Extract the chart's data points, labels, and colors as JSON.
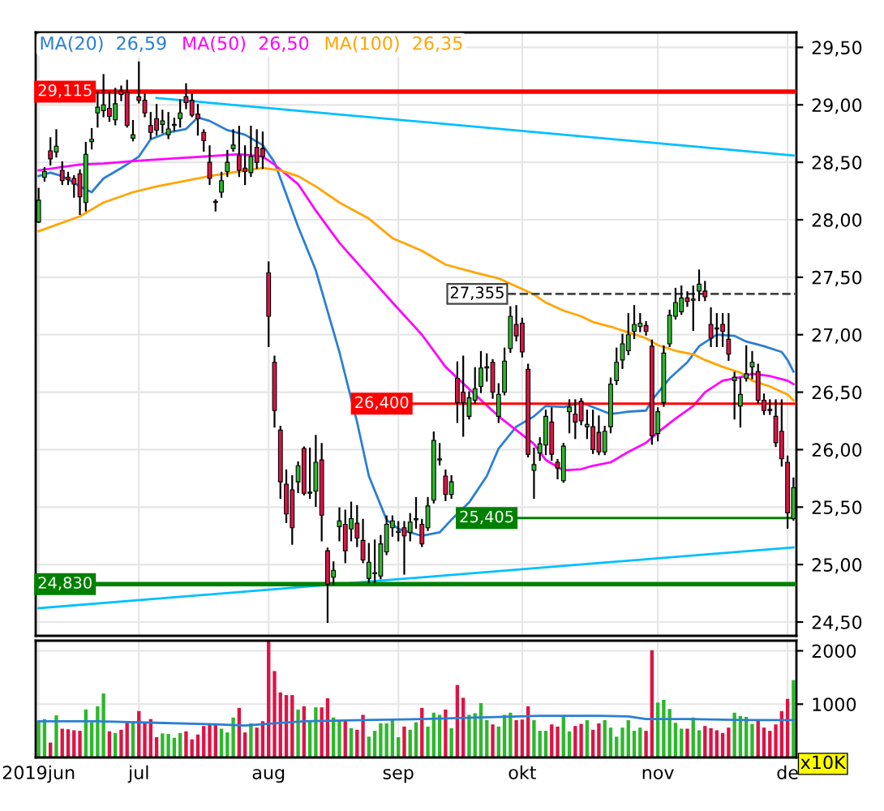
{
  "chart_data": [
    {
      "type": "candlestick",
      "legend": "top left",
      "grid": true,
      "tick_labels": "y",
      "categories": [
        null,
        null,
        null,
        null,
        null,
        null,
        null,
        null,
        null,
        null,
        null,
        null,
        null,
        null,
        null,
        null,
        null,
        null,
        null,
        null,
        null,
        null,
        null,
        null,
        null,
        null,
        null,
        null,
        null,
        null,
        null,
        null,
        null,
        null,
        null,
        null,
        null,
        null,
        null,
        null,
        null,
        null,
        null,
        null,
        null,
        null,
        null,
        null,
        null,
        null,
        null,
        null,
        null,
        null,
        null,
        null,
        null,
        null,
        null,
        null,
        null,
        null,
        null,
        null,
        null,
        null,
        null,
        null,
        null,
        null,
        null,
        null,
        null,
        null,
        null,
        null,
        null,
        null,
        null,
        null,
        null,
        null,
        null,
        null,
        null,
        null,
        null,
        null,
        null,
        null,
        null,
        null,
        null,
        null,
        null,
        null,
        null,
        null,
        null,
        null,
        null,
        null,
        null,
        null,
        null,
        null,
        null,
        null,
        null,
        null,
        null,
        null,
        null,
        null,
        null,
        null,
        null,
        null,
        null,
        null,
        null,
        null,
        null,
        null,
        null,
        null,
        null,
        null,
        null
      ],
      "ohlc": [
        [
          27.98,
          28.27,
          27.98,
          28.17
        ],
        [
          28.37,
          28.45,
          28.34,
          28.42
        ],
        [
          28.6,
          28.71,
          28.48,
          28.53
        ],
        [
          28.59,
          28.78,
          28.55,
          28.64
        ],
        [
          28.43,
          28.5,
          28.31,
          28.34
        ],
        [
          28.37,
          28.41,
          28.31,
          28.35
        ],
        [
          28.36,
          28.38,
          28.2,
          28.31
        ],
        [
          28.4,
          28.43,
          28.05,
          28.2
        ],
        [
          28.15,
          28.67,
          28.08,
          28.57
        ],
        [
          28.68,
          28.79,
          28.62,
          28.7
        ],
        [
          28.93,
          29.11,
          28.81,
          28.98
        ],
        [
          28.95,
          29.26,
          28.9,
          29.0
        ],
        [
          28.97,
          29.11,
          28.86,
          28.9
        ],
        [
          28.87,
          29.14,
          28.83,
          29.01
        ],
        [
          29.12,
          29.16,
          29.04,
          29.09
        ],
        [
          29.11,
          29.21,
          28.81,
          28.82
        ],
        [
          28.71,
          28.86,
          28.69,
          28.74
        ],
        [
          29.07,
          29.37,
          29.02,
          29.04
        ],
        [
          29.04,
          29.09,
          28.9,
          28.93
        ],
        [
          28.82,
          28.93,
          28.71,
          28.76
        ],
        [
          28.88,
          29.0,
          28.74,
          28.78
        ],
        [
          28.83,
          28.95,
          28.76,
          28.86
        ],
        [
          28.74,
          28.93,
          28.71,
          28.79
        ],
        [
          28.82,
          28.88,
          28.78,
          28.83
        ],
        [
          28.88,
          29.04,
          28.81,
          28.93
        ],
        [
          29.07,
          29.18,
          28.97,
          29.02
        ],
        [
          29.04,
          29.09,
          28.9,
          28.91
        ],
        [
          28.92,
          29.0,
          28.74,
          28.88
        ],
        [
          28.76,
          28.78,
          28.6,
          28.69
        ],
        [
          28.5,
          28.64,
          28.31,
          28.36
        ],
        [
          28.16,
          28.17,
          28.08,
          28.15
        ],
        [
          28.24,
          28.41,
          28.2,
          28.34
        ],
        [
          28.42,
          28.6,
          28.38,
          28.5
        ],
        [
          28.62,
          28.78,
          28.6,
          28.65
        ],
        [
          28.56,
          28.81,
          28.38,
          28.43
        ],
        [
          28.45,
          28.64,
          28.31,
          28.42
        ],
        [
          28.41,
          28.81,
          28.38,
          28.55
        ],
        [
          28.63,
          28.78,
          28.45,
          28.5
        ],
        [
          28.62,
          28.76,
          28.45,
          28.55
        ],
        [
          27.54,
          27.63,
          26.9,
          27.16
        ],
        [
          26.76,
          26.81,
          26.2,
          26.34
        ],
        [
          26.17,
          26.2,
          25.58,
          25.72
        ],
        [
          25.7,
          25.82,
          25.37,
          25.44
        ],
        [
          25.65,
          25.77,
          25.18,
          25.32
        ],
        [
          25.72,
          25.89,
          25.63,
          25.86
        ],
        [
          26.01,
          26.02,
          25.61,
          25.62
        ],
        [
          25.62,
          26.01,
          25.58,
          25.63
        ],
        [
          25.64,
          26.12,
          25.51,
          25.89
        ],
        [
          25.91,
          26.05,
          25.21,
          25.43
        ],
        [
          25.12,
          25.14,
          24.5,
          24.83
        ],
        [
          24.89,
          25.02,
          24.83,
          24.95
        ],
        [
          25.33,
          25.49,
          25.21,
          25.38
        ],
        [
          25.35,
          25.47,
          25.02,
          25.12
        ],
        [
          25.31,
          25.54,
          25.21,
          25.4
        ],
        [
          25.36,
          25.51,
          25.16,
          25.23
        ],
        [
          25.21,
          25.39,
          25.02,
          25.04
        ],
        [
          24.88,
          25.18,
          24.85,
          25.02
        ],
        [
          24.92,
          25.21,
          24.85,
          24.93
        ],
        [
          24.9,
          25.25,
          24.88,
          25.18
        ],
        [
          25.11,
          25.42,
          25.09,
          25.35
        ],
        [
          25.32,
          25.42,
          25.25,
          25.38
        ],
        [
          25.28,
          25.37,
          25.21,
          25.29
        ],
        [
          25.32,
          25.37,
          24.92,
          25.25
        ],
        [
          25.28,
          25.44,
          25.21,
          25.37
        ],
        [
          25.39,
          25.58,
          25.32,
          25.4
        ],
        [
          25.35,
          25.39,
          25.16,
          25.18
        ],
        [
          25.32,
          25.58,
          25.3,
          25.51
        ],
        [
          25.56,
          26.15,
          25.54,
          26.08
        ],
        [
          25.91,
          26.05,
          25.87,
          25.92
        ],
        [
          25.77,
          25.82,
          25.56,
          25.61
        ],
        [
          25.61,
          25.77,
          25.58,
          25.72
        ],
        [
          26.62,
          26.76,
          26.24,
          26.41
        ],
        [
          26.5,
          26.81,
          26.12,
          26.41
        ],
        [
          26.29,
          26.5,
          26.27,
          26.45
        ],
        [
          26.43,
          26.71,
          26.41,
          26.53
        ],
        [
          26.55,
          26.85,
          26.5,
          26.71
        ],
        [
          26.71,
          26.83,
          26.6,
          26.72
        ],
        [
          26.76,
          26.78,
          26.45,
          26.5
        ],
        [
          26.29,
          26.57,
          26.24,
          26.48
        ],
        [
          26.5,
          26.88,
          26.48,
          26.77
        ],
        [
          26.88,
          27.24,
          26.85,
          27.16
        ],
        [
          27.09,
          27.25,
          26.95,
          26.99
        ],
        [
          27.1,
          27.14,
          26.81,
          26.85
        ],
        [
          26.7,
          26.74,
          25.94,
          25.96
        ],
        [
          25.82,
          26.01,
          25.58,
          25.87
        ],
        [
          25.97,
          26.1,
          25.91,
          26.05
        ],
        [
          26.04,
          26.34,
          25.96,
          26.29
        ],
        [
          26.24,
          26.36,
          25.91,
          25.96
        ],
        [
          25.89,
          25.91,
          25.75,
          25.84
        ],
        [
          25.73,
          26.05,
          25.72,
          26.03
        ],
        [
          26.33,
          26.43,
          26.15,
          26.37
        ],
        [
          26.31,
          26.43,
          26.1,
          26.24
        ],
        [
          26.42,
          26.44,
          26.22,
          26.25
        ],
        [
          26.2,
          26.34,
          26.1,
          26.22
        ],
        [
          26.2,
          26.34,
          25.97,
          26.0
        ],
        [
          26.15,
          26.29,
          25.96,
          25.98
        ],
        [
          25.98,
          26.2,
          25.96,
          26.16
        ],
        [
          26.2,
          26.62,
          26.15,
          26.57
        ],
        [
          26.6,
          26.88,
          26.57,
          26.76
        ],
        [
          26.78,
          27.0,
          26.71,
          26.92
        ],
        [
          26.86,
          27.18,
          26.83,
          27.0
        ],
        [
          27.03,
          27.25,
          26.97,
          27.09
        ],
        [
          27.07,
          27.18,
          27.03,
          27.1
        ],
        [
          27.08,
          27.11,
          27.0,
          27.03
        ],
        [
          26.9,
          26.95,
          26.05,
          26.12
        ],
        [
          26.14,
          26.36,
          26.08,
          26.33
        ],
        [
          26.41,
          26.9,
          26.38,
          26.84
        ],
        [
          26.92,
          27.21,
          26.9,
          27.17
        ],
        [
          27.16,
          27.4,
          27.14,
          27.28
        ],
        [
          27.2,
          27.42,
          27.18,
          27.32
        ],
        [
          27.32,
          27.37,
          27.25,
          27.29
        ],
        [
          27.3,
          27.42,
          27.04,
          27.31
        ],
        [
          27.38,
          27.56,
          27.3,
          27.44
        ],
        [
          27.38,
          27.46,
          27.3,
          27.33
        ],
        [
          27.09,
          27.23,
          26.9,
          26.97
        ],
        [
          27.06,
          27.18,
          26.9,
          27.05
        ],
        [
          27.09,
          27.18,
          26.9,
          27.03
        ],
        [
          26.96,
          27.18,
          26.78,
          26.83
        ],
        [
          26.6,
          26.67,
          26.27,
          26.63
        ],
        [
          26.38,
          26.62,
          26.2,
          26.48
        ],
        [
          26.62,
          26.9,
          26.6,
          26.66
        ],
        [
          26.72,
          26.85,
          26.62,
          26.76
        ],
        [
          26.68,
          26.74,
          26.41,
          26.43
        ],
        [
          26.43,
          26.48,
          26.31,
          26.34
        ],
        [
          26.35,
          26.43,
          26.31,
          26.34
        ],
        [
          26.29,
          26.43,
          26.03,
          26.06
        ],
        [
          26.16,
          26.43,
          25.86,
          25.92
        ],
        [
          25.89,
          25.94,
          25.32,
          25.45
        ],
        [
          25.4,
          25.75,
          25.39,
          25.67
        ]
      ],
      "colors": [
        "#2db82d",
        "#2db82d",
        "#dc1446",
        "#2db82d",
        "#dc1446",
        "#dc1446",
        "#dc1446",
        "#dc1446",
        "#2db82d",
        "#2db82d",
        "#2db82d",
        "#2db82d",
        "#dc1446",
        "#2db82d",
        "#dc1446",
        "#dc1446",
        "#2db82d",
        "#dc1446",
        "#dc1446",
        "#dc1446",
        "#dc1446",
        "#2db82d",
        "#2db82d",
        "#2db82d",
        "#2db82d",
        "#dc1446",
        "#dc1446",
        "#dc1446",
        "#dc1446",
        "#dc1446",
        "#dc1446",
        "#2db82d",
        "#2db82d",
        "#2db82d",
        "#dc1446",
        "#dc1446",
        "#2db82d",
        "#dc1446",
        "#dc1446",
        "#dc1446",
        "#dc1446",
        "#dc1446",
        "#dc1446",
        "#dc1446",
        "#2db82d",
        "#dc1446",
        "#2db82d",
        "#2db82d",
        "#dc1446",
        "#dc1446",
        "#2db82d",
        "#2db82d",
        "#dc1446",
        "#2db82d",
        "#dc1446",
        "#dc1446",
        "#2db82d",
        "#2db82d",
        "#2db82d",
        "#2db82d",
        "#2db82d",
        "#2db82d",
        "#dc1446",
        "#2db82d",
        "#2db82d",
        "#dc1446",
        "#2db82d",
        "#2db82d",
        "#2db82d",
        "#dc1446",
        "#2db82d",
        "#dc1446",
        "#dc1446",
        "#2db82d",
        "#2db82d",
        "#2db82d",
        "#2db82d",
        "#dc1446",
        "#2db82d",
        "#2db82d",
        "#2db82d",
        "#dc1446",
        "#dc1446",
        "#dc1446",
        "#2db82d",
        "#2db82d",
        "#2db82d",
        "#dc1446",
        "#dc1446",
        "#2db82d",
        "#2db82d",
        "#dc1446",
        "#dc1446",
        "#2db82d",
        "#dc1446",
        "#dc1446",
        "#2db82d",
        "#2db82d",
        "#2db82d",
        "#2db82d",
        "#2db82d",
        "#2db82d",
        "#2db82d",
        "#dc1446",
        "#dc1446",
        "#2db82d",
        "#2db82d",
        "#2db82d",
        "#2db82d",
        "#2db82d",
        "#dc1446",
        "#2db82d",
        "#2db82d",
        "#dc1446",
        "#dc1446",
        "#dc1446",
        "#dc1446",
        "#dc1446",
        "#2db82d",
        "#2db82d",
        "#2db82d",
        "#2db82d",
        "#dc1446",
        "#dc1446",
        "#dc1446",
        "#dc1446",
        "#dc1446",
        "#dc1446",
        "#2db82d"
      ],
      "series": [
        {
          "name": "MA(20)  26,59",
          "type": "line",
          "color": "#2a7fd4",
          "values": [
            28.38,
            null,
            28.41,
            null,
            28.38,
            null,
            null,
            28.29,
            null,
            28.24,
            null,
            28.36,
            null,
            null,
            28.45,
            null,
            null,
            28.55,
            null,
            28.7,
            null,
            null,
            28.76,
            null,
            null,
            28.79,
            null,
            28.89,
            null,
            28.86,
            null,
            null,
            28.78,
            null,
            null,
            28.74,
            null,
            null,
            28.65,
            null,
            28.5,
            null,
            28.22,
            null,
            27.94,
            null,
            null,
            27.56,
            null,
            null,
            null,
            26.85,
            null,
            null,
            26.24,
            null,
            25.77,
            null,
            null,
            25.39,
            null,
            25.31,
            null,
            null,
            null,
            25.25,
            null,
            null,
            25.28,
            null,
            25.39,
            null,
            null,
            25.54,
            null,
            null,
            25.77,
            null,
            26.01,
            null,
            null,
            26.2,
            null,
            null,
            26.29,
            null,
            26.38,
            null,
            null,
            26.37,
            null,
            null,
            26.41,
            null,
            26.37,
            null,
            null,
            26.31,
            null,
            null,
            26.33,
            null,
            null,
            26.34,
            26.43,
            null,
            null,
            26.62,
            null,
            null,
            26.76,
            null,
            26.9,
            null,
            null,
            27.0,
            null,
            null,
            26.99,
            null,
            26.94,
            null,
            null,
            26.9,
            null,
            null,
            26.85,
            26.78,
            26.68
          ]
        },
        {
          "name": "MA(50)  26,50",
          "type": "line",
          "color": "#ff00ff",
          "values": [
            28.43,
            null,
            null,
            null,
            null,
            null,
            null,
            28.48,
            null,
            null,
            null,
            28.49,
            null,
            null,
            null,
            null,
            28.51,
            null,
            null,
            null,
            null,
            null,
            null,
            null,
            null,
            28.54,
            null,
            null,
            null,
            null,
            null,
            null,
            null,
            null,
            28.57,
            null,
            null,
            null,
            28.55,
            null,
            28.48,
            null,
            null,
            null,
            28.31,
            null,
            null,
            28.08,
            null,
            null,
            null,
            27.8,
            null,
            null,
            null,
            null,
            27.51,
            null,
            null,
            null,
            27.28,
            null,
            null,
            null,
            null,
            27.0,
            null,
            null,
            null,
            26.72,
            null,
            null,
            null,
            null,
            26.48,
            null,
            null,
            null,
            26.29,
            null,
            null,
            null,
            null,
            null,
            26.05,
            null,
            25.91,
            null,
            null,
            25.82,
            null,
            null,
            25.83,
            null,
            25.86,
            null,
            null,
            25.89,
            null,
            null,
            25.98,
            null,
            null,
            26.06,
            null,
            26.15,
            null,
            null,
            26.27,
            null,
            null,
            26.38,
            null,
            26.5,
            null,
            null,
            26.6,
            null,
            null,
            26.63,
            null,
            26.66,
            null,
            null,
            26.64,
            null,
            null,
            26.6,
            26.57
          ]
        },
        {
          "name": "MA(100)  26,35",
          "type": "line",
          "color": "#ffa500",
          "values": [
            27.9,
            null,
            null,
            null,
            null,
            null,
            null,
            28.03,
            null,
            null,
            null,
            28.15,
            null,
            null,
            null,
            null,
            28.24,
            null,
            null,
            null,
            28.29,
            null,
            null,
            null,
            null,
            28.34,
            null,
            null,
            null,
            28.38,
            null,
            null,
            null,
            null,
            28.42,
            null,
            null,
            null,
            28.45,
            null,
            null,
            28.43,
            null,
            null,
            28.38,
            null,
            null,
            28.29,
            null,
            null,
            null,
            28.15,
            null,
            null,
            null,
            null,
            28.01,
            null,
            null,
            null,
            27.84,
            null,
            null,
            null,
            null,
            27.73,
            null,
            null,
            null,
            27.61,
            null,
            null,
            null,
            null,
            27.54,
            null,
            null,
            null,
            27.49,
            null,
            null,
            null,
            null,
            null,
            27.35,
            null,
            27.28,
            null,
            null,
            27.21,
            null,
            null,
            27.16,
            null,
            27.11,
            null,
            null,
            27.07,
            null,
            null,
            27.02,
            null,
            null,
            26.97,
            null,
            26.91,
            null,
            null,
            26.86,
            null,
            null,
            26.83,
            null,
            26.78,
            null,
            null,
            26.72,
            null,
            null,
            26.67,
            null,
            26.6,
            null,
            null,
            26.55,
            null,
            null,
            26.48,
            26.43
          ]
        },
        {
          "type": "line",
          "color": "#00bfff",
          "values": [
            null,
            null,
            null,
            null,
            null,
            null,
            null,
            null,
            null,
            null,
            null,
            null,
            null,
            null,
            null,
            null,
            null,
            null,
            null,
            null,
            29.06,
            null,
            null,
            null,
            null,
            null,
            null,
            null,
            null,
            null,
            null,
            null,
            null,
            null,
            null,
            null,
            null,
            null,
            null,
            null,
            null,
            null,
            null,
            null,
            null,
            null,
            null,
            null,
            null,
            null,
            null,
            null,
            null,
            null,
            null,
            null,
            null,
            null,
            null,
            null,
            null,
            null,
            null,
            null,
            null,
            null,
            null,
            null,
            null,
            null,
            null,
            null,
            null,
            null,
            null,
            null,
            null,
            null,
            null,
            null,
            null,
            null,
            null,
            null,
            null,
            null,
            null,
            null,
            null,
            null,
            null,
            null,
            null,
            null,
            null,
            null,
            null,
            null,
            null,
            null,
            null,
            null,
            null,
            null,
            null,
            null,
            null,
            null,
            null,
            null,
            null,
            null,
            null,
            null,
            null,
            null,
            null,
            null,
            null,
            null,
            null,
            null,
            null,
            null,
            null,
            null,
            null,
            null,
            28.56
          ]
        },
        {
          "type": "line",
          "color": "#00bfff",
          "values": [
            24.62,
            null,
            null,
            null,
            null,
            null,
            null,
            null,
            null,
            null,
            null,
            null,
            null,
            null,
            null,
            null,
            null,
            null,
            null,
            null,
            null,
            null,
            null,
            null,
            null,
            null,
            null,
            null,
            null,
            null,
            null,
            null,
            null,
            null,
            null,
            null,
            null,
            null,
            null,
            null,
            null,
            null,
            null,
            null,
            null,
            null,
            null,
            null,
            null,
            null,
            null,
            null,
            null,
            null,
            null,
            null,
            null,
            null,
            null,
            null,
            null,
            null,
            null,
            null,
            null,
            null,
            null,
            null,
            null,
            null,
            null,
            null,
            null,
            null,
            null,
            null,
            null,
            null,
            null,
            null,
            null,
            null,
            null,
            null,
            null,
            null,
            null,
            null,
            null,
            null,
            null,
            null,
            null,
            null,
            null,
            null,
            null,
            null,
            null,
            null,
            null,
            null,
            null,
            null,
            null,
            null,
            null,
            null,
            null,
            null,
            null,
            null,
            null,
            null,
            null,
            null,
            null,
            null,
            null,
            null,
            null,
            null,
            null,
            null,
            null,
            null,
            null,
            null,
            25.15
          ]
        }
      ],
      "ref_lines": [
        {
          "axis": "y",
          "value": 29.115,
          "label": "29,115",
          "color": "#ff0000"
        },
        {
          "axis": "y",
          "value": 24.83,
          "label": "24,830",
          "color": "#008000"
        },
        {
          "axis": "y",
          "value": 26.4,
          "label": "26,400",
          "color": "#ff0000"
        },
        {
          "axis": "y",
          "value": 25.405,
          "label": "25,405",
          "color": "#008000"
        },
        {
          "axis": "y",
          "value": 27.355,
          "label": "27,355",
          "color": "#444444",
          "line_style": "dashed"
        }
      ],
      "ylim": [
        24.38,
        29.63
      ],
      "yticks": [
        {
          "value": 24.5,
          "label": "24,50"
        },
        {
          "value": 25.0,
          "label": "25,00"
        },
        {
          "value": 25.5,
          "label": "25,50"
        },
        {
          "value": 26.0,
          "label": "26,00"
        },
        {
          "value": 26.5,
          "label": "26,50"
        },
        {
          "value": 27.0,
          "label": "27,00"
        },
        {
          "value": 27.5,
          "label": "27,50"
        },
        {
          "value": 28.0,
          "label": "28,00"
        },
        {
          "value": 28.5,
          "label": "28,50"
        },
        {
          "value": 29.0,
          "label": "29,00"
        },
        {
          "value": 29.5,
          "label": "29,50"
        }
      ]
    },
    {
      "type": "bar",
      "grid": true,
      "categories": [
        "2019jun",
        null,
        null,
        null,
        null,
        null,
        null,
        null,
        null,
        null,
        null,
        null,
        null,
        null,
        null,
        null,
        null,
        "jul",
        null,
        null,
        null,
        null,
        null,
        null,
        null,
        null,
        null,
        null,
        null,
        null,
        null,
        null,
        null,
        null,
        null,
        null,
        null,
        null,
        null,
        "aug",
        null,
        null,
        null,
        null,
        null,
        null,
        null,
        null,
        null,
        null,
        null,
        null,
        null,
        null,
        null,
        null,
        null,
        null,
        null,
        null,
        null,
        "sep",
        null,
        null,
        null,
        null,
        null,
        null,
        null,
        null,
        null,
        null,
        null,
        null,
        null,
        null,
        null,
        null,
        null,
        null,
        null,
        null,
        "okt",
        null,
        null,
        null,
        null,
        null,
        null,
        null,
        null,
        null,
        null,
        null,
        null,
        null,
        null,
        null,
        null,
        null,
        null,
        null,
        null,
        null,
        null,
        "nov",
        null,
        null,
        null,
        null,
        null,
        null,
        null,
        null,
        null,
        null,
        null,
        null,
        null,
        null,
        null,
        null,
        null,
        null,
        null,
        null,
        null,
        "de",
        null
      ],
      "series": [
        {
          "type": "bar",
          "values": [
            690,
            720,
            280,
            790,
            540,
            530,
            510,
            500,
            900,
            660,
            960,
            1200,
            490,
            460,
            520,
            650,
            640,
            870,
            640,
            720,
            380,
            450,
            440,
            370,
            460,
            490,
            340,
            430,
            590,
            640,
            640,
            540,
            470,
            750,
            930,
            470,
            640,
            560,
            680,
            2180,
            1620,
            1220,
            1170,
            1170,
            900,
            960,
            700,
            940,
            940,
            1110,
            750,
            700,
            700,
            550,
            520,
            800,
            390,
            500,
            640,
            640,
            700,
            380,
            580,
            520,
            660,
            930,
            580,
            840,
            800,
            900,
            550,
            1360,
            1120,
            800,
            830,
            1020,
            700,
            620,
            580,
            800,
            840,
            700,
            710,
            960,
            700,
            500,
            500,
            620,
            580,
            760,
            490,
            590,
            630,
            700,
            520,
            640,
            700,
            560,
            390,
            560,
            700,
            500,
            560,
            500,
            2010,
            1030,
            1080,
            910,
            650,
            540,
            540,
            750,
            510,
            590,
            550,
            510,
            460,
            560,
            840,
            780,
            760,
            630,
            700,
            560,
            500,
            620,
            870,
            1100,
            1450
          ],
          "colors": [
            "#2db82d",
            "#2db82d",
            "#dc1446",
            "#2db82d",
            "#dc1446",
            "#dc1446",
            "#dc1446",
            "#dc1446",
            "#2db82d",
            "#2db82d",
            "#2db82d",
            "#2db82d",
            "#dc1446",
            "#2db82d",
            "#dc1446",
            "#dc1446",
            "#2db82d",
            "#dc1446",
            "#dc1446",
            "#dc1446",
            "#dc1446",
            "#2db82d",
            "#2db82d",
            "#2db82d",
            "#2db82d",
            "#dc1446",
            "#dc1446",
            "#dc1446",
            "#dc1446",
            "#dc1446",
            "#dc1446",
            "#2db82d",
            "#2db82d",
            "#2db82d",
            "#dc1446",
            "#dc1446",
            "#2db82d",
            "#dc1446",
            "#dc1446",
            "#dc1446",
            "#dc1446",
            "#dc1446",
            "#dc1446",
            "#dc1446",
            "#2db82d",
            "#dc1446",
            "#2db82d",
            "#2db82d",
            "#dc1446",
            "#dc1446",
            "#2db82d",
            "#2db82d",
            "#dc1446",
            "#2db82d",
            "#dc1446",
            "#dc1446",
            "#2db82d",
            "#2db82d",
            "#2db82d",
            "#2db82d",
            "#2db82d",
            "#2db82d",
            "#dc1446",
            "#2db82d",
            "#2db82d",
            "#dc1446",
            "#2db82d",
            "#2db82d",
            "#2db82d",
            "#dc1446",
            "#2db82d",
            "#dc1446",
            "#dc1446",
            "#2db82d",
            "#2db82d",
            "#2db82d",
            "#2db82d",
            "#dc1446",
            "#2db82d",
            "#2db82d",
            "#2db82d",
            "#dc1446",
            "#dc1446",
            "#dc1446",
            "#2db82d",
            "#2db82d",
            "#2db82d",
            "#dc1446",
            "#dc1446",
            "#2db82d",
            "#2db82d",
            "#dc1446",
            "#dc1446",
            "#2db82d",
            "#dc1446",
            "#dc1446",
            "#2db82d",
            "#2db82d",
            "#2db82d",
            "#2db82d",
            "#2db82d",
            "#2db82d",
            "#2db82d",
            "#dc1446",
            "#dc1446",
            "#2db82d",
            "#2db82d",
            "#2db82d",
            "#2db82d",
            "#2db82d",
            "#dc1446",
            "#2db82d",
            "#2db82d",
            "#dc1446",
            "#dc1446",
            "#dc1446",
            "#dc1446",
            "#dc1446",
            "#2db82d",
            "#2db82d",
            "#2db82d",
            "#2db82d",
            "#dc1446",
            "#dc1446",
            "#dc1446",
            "#dc1446",
            "#dc1446",
            "#dc1446",
            "#2db82d"
          ]
        },
        {
          "type": "line",
          "color": "#2a7fd4",
          "values": [
            680,
            null,
            null,
            null,
            null,
            null,
            null,
            null,
            null,
            null,
            680,
            null,
            null,
            null,
            null,
            null,
            null,
            null,
            null,
            null,
            650,
            null,
            null,
            null,
            null,
            null,
            null,
            null,
            null,
            null,
            620,
            null,
            null,
            null,
            null,
            600,
            null,
            null,
            null,
            null,
            640,
            null,
            null,
            null,
            null,
            680,
            null,
            null,
            null,
            null,
            null,
            null,
            null,
            null,
            null,
            700,
            null,
            null,
            null,
            null,
            null,
            null,
            null,
            null,
            null,
            720,
            null,
            null,
            null,
            null,
            null,
            null,
            null,
            null,
            null,
            750,
            null,
            null,
            null,
            null,
            null,
            null,
            null,
            null,
            null,
            780,
            null,
            null,
            null,
            null,
            null,
            null,
            null,
            null,
            null,
            780,
            null,
            null,
            null,
            null,
            770,
            null,
            null,
            720,
            null,
            null,
            null,
            null,
            null,
            null,
            720,
            null,
            null,
            null,
            null,
            null,
            null,
            null,
            null,
            null,
            700,
            null,
            null,
            null,
            null,
            null,
            null,
            null,
            700
          ]
        }
      ],
      "annotations": [
        "x10K"
      ],
      "ylim": [
        0,
        2190
      ],
      "yticks": [
        1000,
        2000
      ]
    }
  ]
}
